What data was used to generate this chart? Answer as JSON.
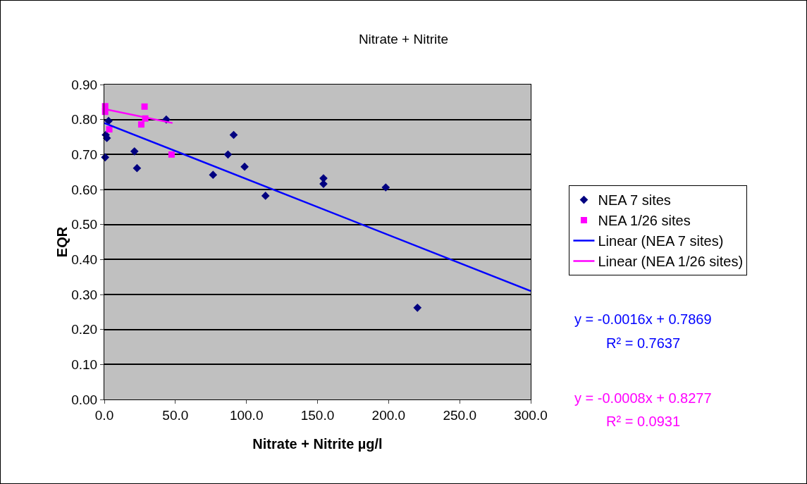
{
  "chart_data": {
    "type": "scatter",
    "title": "Nitrate + Nitrite",
    "xlabel": "Nitrate + Nitrite µg/l",
    "ylabel": "EQR",
    "xlim": [
      0,
      300
    ],
    "xticks": [
      {
        "value": 0,
        "label": "0.0"
      },
      {
        "value": 50,
        "label": "50.0"
      },
      {
        "value": 100,
        "label": "100.0"
      },
      {
        "value": 150,
        "label": "150.0"
      },
      {
        "value": 200,
        "label": "200.0"
      },
      {
        "value": 250,
        "label": "250.0"
      },
      {
        "value": 300,
        "label": "300.0"
      }
    ],
    "ylim": [
      0,
      0.9
    ],
    "yticks": [
      {
        "value": 0,
        "label": "0.00"
      },
      {
        "value": 0.1,
        "label": "0.10"
      },
      {
        "value": 0.2,
        "label": "0.20"
      },
      {
        "value": 0.3,
        "label": "0.30"
      },
      {
        "value": 0.4,
        "label": "0.40"
      },
      {
        "value": 0.5,
        "label": "0.50"
      },
      {
        "value": 0.6,
        "label": "0.60"
      },
      {
        "value": 0.7,
        "label": "0.70"
      },
      {
        "value": 0.8,
        "label": "0.80"
      },
      {
        "value": 0.9,
        "label": "0.90"
      }
    ],
    "grid": "y",
    "legend": "right",
    "series": [
      {
        "name": "NEA 7 sites",
        "color": "#000080",
        "marker": "diamond",
        "x": [
          0.6,
          1,
          1.8,
          3,
          21.2,
          23,
          43.6,
          76.5,
          87,
          91,
          98.7,
          113.4,
          154.2,
          154.2,
          198,
          220.3
        ],
        "values": [
          0.692,
          0.756,
          0.747,
          0.796,
          0.709,
          0.661,
          0.8,
          0.642,
          0.7,
          0.756,
          0.665,
          0.582,
          0.632,
          0.616,
          0.606,
          0.262
        ]
      },
      {
        "name": "NEA 1/26 sites",
        "color": "#ff00ff",
        "marker": "square",
        "x": [
          0.6,
          0.6,
          3.5,
          26,
          28.3,
          28.8,
          47.3
        ],
        "values": [
          0.838,
          0.822,
          0.772,
          0.786,
          0.837,
          0.803,
          0.7
        ]
      },
      {
        "name": "Linear (NEA 7 sites)",
        "type": "line",
        "color": "#0000ff",
        "marker": "none",
        "x": [
          0,
          300
        ],
        "values": [
          0.79,
          0.31
        ]
      },
      {
        "name": "Linear (NEA 1/26 sites)",
        "type": "line",
        "color": "#ff00ff",
        "marker": "none",
        "x": [
          0,
          48
        ],
        "values": [
          0.83,
          0.79
        ]
      }
    ],
    "annotations": [
      "y = -0.0016x + 0.7869",
      "R² = 0.7637",
      "y = -0.0008x + 0.8277",
      "R² = 0.0931"
    ]
  }
}
